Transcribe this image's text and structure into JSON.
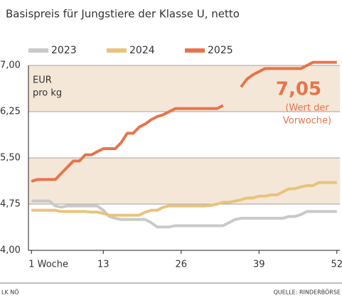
{
  "chart_data": {
    "type": "line",
    "title": "Basispreis für Jungstiere der Klasse U, netto",
    "unit_label": [
      "EUR",
      "pro kg"
    ],
    "annotation_value": "7,05",
    "annotation_note": [
      "(Wert der",
      "Vorwoche)"
    ],
    "footer_left": "LK NÖ",
    "footer_right": "QUELLE: RINDERBÖRSE",
    "x": [
      1,
      2,
      3,
      4,
      5,
      6,
      7,
      8,
      9,
      10,
      11,
      12,
      13,
      14,
      15,
      16,
      17,
      18,
      19,
      20,
      21,
      22,
      23,
      24,
      25,
      26,
      27,
      28,
      29,
      30,
      31,
      32,
      33,
      34,
      35,
      36,
      37,
      38,
      39,
      40,
      41,
      42,
      43,
      44,
      45,
      46,
      47,
      48,
      49,
      50,
      51,
      52
    ],
    "xlim": [
      0.5,
      52.5
    ],
    "xticks": [
      {
        "value": 1,
        "label": "1 Woche"
      },
      13,
      26,
      39,
      52
    ],
    "ylim": [
      4.0,
      7.0
    ],
    "yticks": [
      {
        "value": 4.0,
        "label": "4,00"
      },
      {
        "value": 4.75,
        "label": "4,75"
      },
      {
        "value": 5.5,
        "label": "5,50"
      },
      {
        "value": 6.25,
        "label": "6,25"
      },
      {
        "value": 7.0,
        "label": "7,00"
      }
    ],
    "grid": true,
    "alternate_bands": true,
    "band_color": "#f4e7d7",
    "legend": "top-left",
    "series": [
      {
        "name": "2023",
        "color": "#c9c9c9",
        "values": [
          4.8,
          4.8,
          4.8,
          4.8,
          4.72,
          4.7,
          4.72,
          4.72,
          4.72,
          4.72,
          4.72,
          4.72,
          4.65,
          4.55,
          4.52,
          4.5,
          4.5,
          4.5,
          4.5,
          4.5,
          4.45,
          4.38,
          4.38,
          4.38,
          4.4,
          4.4,
          4.4,
          4.4,
          4.4,
          4.4,
          4.4,
          4.4,
          4.4,
          4.45,
          4.5,
          4.52,
          4.52,
          4.52,
          4.52,
          4.52,
          4.52,
          4.52,
          4.52,
          4.55,
          4.55,
          4.58,
          4.63,
          4.63,
          4.63,
          4.63,
          4.63,
          4.63
        ]
      },
      {
        "name": "2024",
        "color": "#e9c37c",
        "values": [
          4.65,
          4.65,
          4.65,
          4.65,
          4.65,
          4.63,
          4.63,
          4.63,
          4.63,
          4.63,
          4.62,
          4.62,
          4.6,
          4.57,
          4.57,
          4.57,
          4.57,
          4.57,
          4.57,
          4.62,
          4.65,
          4.65,
          4.7,
          4.72,
          4.72,
          4.72,
          4.72,
          4.72,
          4.72,
          4.72,
          4.73,
          4.75,
          4.78,
          4.78,
          4.8,
          4.82,
          4.85,
          4.85,
          4.88,
          4.88,
          4.9,
          4.9,
          4.95,
          5.0,
          5.0,
          5.03,
          5.05,
          5.05,
          5.1,
          5.1,
          5.1,
          5.1
        ]
      },
      {
        "name": "2025",
        "color": "#e8744b",
        "values": [
          5.12,
          5.15,
          5.15,
          5.15,
          5.15,
          5.25,
          5.35,
          5.45,
          5.45,
          5.55,
          5.55,
          5.6,
          5.65,
          5.65,
          5.65,
          5.75,
          5.9,
          5.9,
          6.0,
          6.05,
          6.12,
          6.17,
          6.2,
          6.25,
          6.3,
          6.3,
          6.3,
          6.3,
          6.3,
          6.3,
          6.3,
          6.3,
          6.35,
          null,
          null,
          6.65,
          6.78,
          6.85,
          6.9,
          6.95,
          6.95,
          6.95,
          6.95,
          6.95,
          6.95,
          6.95,
          7.0,
          7.05,
          7.05,
          7.05,
          7.05,
          7.05
        ]
      }
    ]
  }
}
